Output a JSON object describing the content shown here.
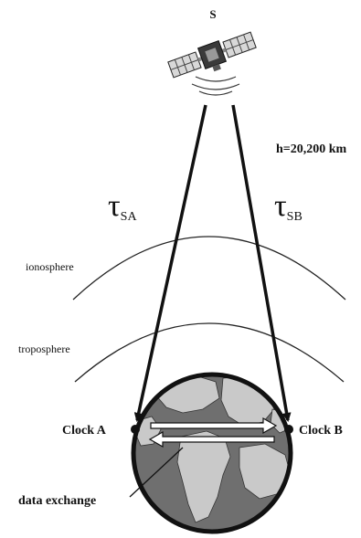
{
  "satellite": {
    "label": "S",
    "altitude": "h=20,200 km"
  },
  "delays": {
    "sa": {
      "symbol": "τ",
      "subscript": "SA"
    },
    "sb": {
      "symbol": "τ",
      "subscript": "SB"
    }
  },
  "layers": {
    "ionosphere": "ionosphere",
    "troposphere": "troposphere"
  },
  "clocks": {
    "a": "Clock A",
    "b": "Clock B"
  },
  "annotation": {
    "data_exchange": "data exchange"
  },
  "colors": {
    "ink": "#111111",
    "ocean": "#6f6f6f",
    "land": "#c9c9c9",
    "arrow_fill": "#ffffff"
  }
}
